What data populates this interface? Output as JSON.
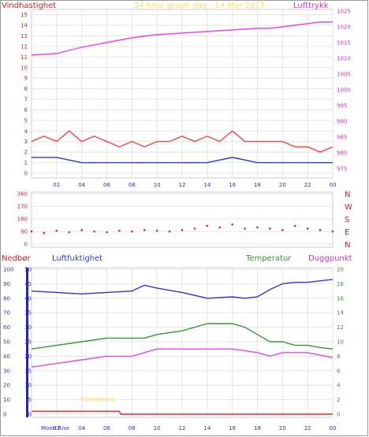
{
  "chart_data": [
    {
      "type": "line",
      "title": "24 hour graph day : 14 Mar 2017",
      "left_label": "Vindhastighet",
      "right_label": "Lufttrykk",
      "x_ticks": [
        "02",
        "04",
        "06",
        "08",
        "10",
        "12",
        "14",
        "16",
        "18",
        "20",
        "22",
        "00"
      ],
      "y_ticks": [
        "0",
        "1",
        "2",
        "3",
        "4",
        "5",
        "6",
        "7",
        "8",
        "9",
        "10",
        "11",
        "12",
        "13",
        "14",
        "15"
      ],
      "y_right_ticks": [
        "975",
        "980",
        "985",
        "990",
        "995",
        "1000",
        "1005",
        "1010",
        "1015",
        "1020",
        "1025"
      ],
      "ylim": [
        0,
        15.5
      ],
      "ylim_right": [
        973.5,
        1025.5
      ],
      "series": [
        {
          "name": "Lufttrykk",
          "color": "#ee44ee",
          "axis": "right",
          "x": [
            0,
            2,
            3,
            4,
            6,
            8,
            10,
            12,
            14,
            16,
            18,
            19,
            20,
            21,
            22,
            23,
            24
          ],
          "values": [
            1011,
            1011.5,
            1012.5,
            1013.5,
            1015,
            1016.5,
            1017.5,
            1018,
            1018.5,
            1019,
            1019.5,
            1019.5,
            1020,
            1020.5,
            1021,
            1021.5,
            1021.5
          ]
        },
        {
          "name": "Vindkast",
          "color": "#ff4444",
          "axis": "left",
          "x": [
            0,
            1,
            2,
            3,
            4,
            5,
            6,
            7,
            8,
            9,
            10,
            11,
            12,
            13,
            14,
            15,
            16,
            17,
            18,
            19,
            20,
            21,
            22,
            23,
            24
          ],
          "values": [
            3,
            3.5,
            3,
            4,
            3,
            3.5,
            3,
            2.5,
            3,
            2.5,
            3,
            3,
            3.5,
            3,
            3.5,
            3,
            4,
            3,
            3,
            3,
            3,
            2.5,
            2.5,
            2,
            2.5
          ]
        },
        {
          "name": "Vindhastighet",
          "color": "#3333dd",
          "axis": "left",
          "x": [
            0,
            2,
            4,
            6,
            8,
            10,
            12,
            14,
            16,
            18,
            20,
            22,
            24
          ],
          "values": [
            1.5,
            1.5,
            1,
            1,
            1,
            1,
            1,
            1,
            1.5,
            1,
            1,
            1,
            1
          ]
        }
      ]
    },
    {
      "type": "scatter",
      "right_labels": [
        "N",
        "W",
        "S",
        "E",
        "N"
      ],
      "y_ticks": [
        "0",
        "90",
        "180",
        "270",
        "360"
      ],
      "ylim": [
        0,
        360
      ],
      "series": [
        {
          "name": "Vindretning",
          "color": "#ee2222",
          "x": [
            0,
            1,
            2,
            3,
            4,
            5,
            6,
            7,
            8,
            9,
            10,
            11,
            12,
            13,
            14,
            15,
            16,
            17,
            18,
            19,
            20,
            21,
            22,
            23,
            24
          ],
          "values": [
            90,
            80,
            95,
            85,
            100,
            90,
            85,
            95,
            90,
            100,
            95,
            90,
            100,
            110,
            130,
            120,
            140,
            110,
            120,
            110,
            100,
            130,
            110,
            100,
            90
          ]
        }
      ]
    },
    {
      "type": "line",
      "legend": [
        "Nedbør",
        "Luftfuktighet",
        "Temperatur",
        "Duggpunkt"
      ],
      "y_left_ticks": [
        "0",
        "5",
        "10",
        "15",
        "20",
        "25",
        "30",
        "35",
        "40",
        "45",
        "50"
      ],
      "y_humidity_ticks": [
        "0",
        "10",
        "20",
        "30",
        "40",
        "50",
        "60",
        "70",
        "80",
        "90",
        "100"
      ],
      "y_right_ticks": [
        "0",
        "2",
        "4",
        "6",
        "8",
        "10",
        "12",
        "14",
        "16",
        "18",
        "20"
      ],
      "annotations": [
        "Soloppgang",
        "Moon Rise"
      ],
      "series": [
        {
          "name": "Luftfuktighet",
          "color": "#3333dd",
          "x": [
            0,
            2,
            4,
            6,
            8,
            9,
            10,
            12,
            14,
            16,
            17,
            18,
            19,
            20,
            21,
            22,
            23,
            24
          ],
          "values": [
            85,
            84,
            83,
            84,
            85,
            89,
            87,
            84,
            80,
            81,
            80,
            81,
            86,
            90,
            91,
            91,
            92,
            93
          ]
        },
        {
          "name": "Temperatur",
          "color": "#339933",
          "x": [
            0,
            2,
            4,
            6,
            8,
            9,
            10,
            12,
            13,
            14,
            15,
            16,
            17,
            18,
            19,
            20,
            21,
            22,
            23,
            24
          ],
          "values": [
            9,
            9.5,
            10,
            10.5,
            10.5,
            10.5,
            11,
            11.5,
            12,
            12.5,
            12.5,
            12.5,
            12,
            11,
            10,
            10,
            9.5,
            9.5,
            9.2,
            9
          ]
        },
        {
          "name": "Duggpunkt",
          "color": "#ee44ee",
          "x": [
            0,
            2,
            4,
            6,
            8,
            9,
            10,
            12,
            14,
            16,
            18,
            19,
            20,
            22,
            24
          ],
          "values": [
            6.5,
            7,
            7.5,
            8,
            8,
            8.5,
            9,
            9,
            9,
            9,
            8.5,
            8,
            8.5,
            8.5,
            7.8
          ]
        },
        {
          "name": "Nedbør",
          "color": "#ff2222",
          "axis": "left",
          "x": [
            0,
            7,
            7.1,
            24
          ],
          "values": [
            1,
            1,
            0,
            0
          ]
        }
      ]
    }
  ]
}
